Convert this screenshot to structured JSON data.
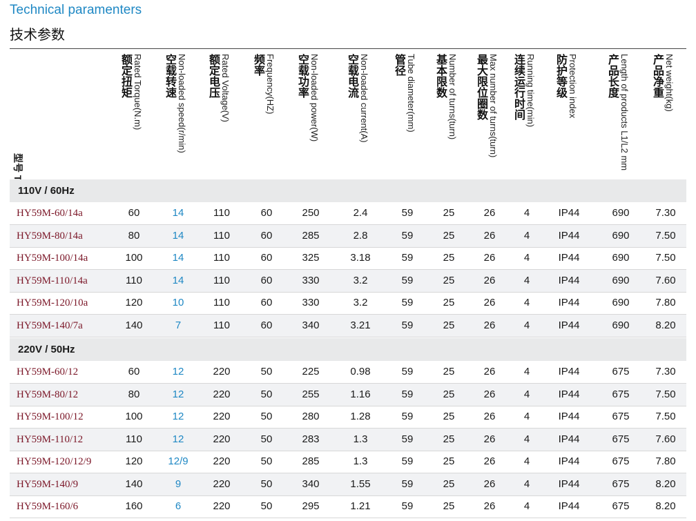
{
  "title_en": "Technical paramenters",
  "title_cn": "技术参数",
  "colors": {
    "accent_blue": "#1f88c4",
    "type_red": "#7a1526",
    "group_bg": "#e8e9ea"
  },
  "header": {
    "type_label": "型号 Type",
    "columns": [
      {
        "key": "torque",
        "en": "Rated Torque(N.m)",
        "cn": "额定扭矩"
      },
      {
        "key": "speed",
        "en": "Non-loaded speed(r/min)",
        "cn": "空载转速"
      },
      {
        "key": "voltage",
        "en": "Rated Voltage(V)",
        "cn": "额定电压"
      },
      {
        "key": "freq",
        "en": "Frequency(HZ)",
        "cn": "频率"
      },
      {
        "key": "power",
        "en": "Non-loaded power(W)",
        "cn": "空载功率"
      },
      {
        "key": "current",
        "en": "Non-loaded current(A)",
        "cn": "空载电流"
      },
      {
        "key": "tube",
        "en": "Tube diameter(mm)",
        "cn": "管径"
      },
      {
        "key": "turns",
        "en": "Number of turns(turn)",
        "cn": "基本限数"
      },
      {
        "key": "maxturns",
        "en": "Max number of turns(turn)",
        "cn": "最大限位圈数"
      },
      {
        "key": "runtime",
        "en": "Running time(min)",
        "cn": "连续运行时间"
      },
      {
        "key": "ip",
        "en": "Protection index",
        "cn": "防护等级"
      },
      {
        "key": "length",
        "en": "Length of products L1/L2 mm",
        "cn": "产品长度"
      },
      {
        "key": "weight",
        "en": "Net weight(kg)",
        "cn": "产品净重"
      }
    ]
  },
  "groups": [
    {
      "label": "110V / 60Hz",
      "rows": [
        [
          "HY59M-60/14a",
          "60",
          "14",
          "110",
          "60",
          "250",
          "2.4",
          "59",
          "25",
          "26",
          "4",
          "IP44",
          "690",
          "7.30"
        ],
        [
          "HY59M-80/14a",
          "80",
          "14",
          "110",
          "60",
          "285",
          "2.8",
          "59",
          "25",
          "26",
          "4",
          "IP44",
          "690",
          "7.50"
        ],
        [
          "HY59M-100/14a",
          "100",
          "14",
          "110",
          "60",
          "325",
          "3.18",
          "59",
          "25",
          "26",
          "4",
          "IP44",
          "690",
          "7.50"
        ],
        [
          "HY59M-110/14a",
          "110",
          "14",
          "110",
          "60",
          "330",
          "3.2",
          "59",
          "25",
          "26",
          "4",
          "IP44",
          "690",
          "7.60"
        ],
        [
          "HY59M-120/10a",
          "120",
          "10",
          "110",
          "60",
          "330",
          "3.2",
          "59",
          "25",
          "26",
          "4",
          "IP44",
          "690",
          "7.80"
        ],
        [
          "HY59M-140/7a",
          "140",
          "7",
          "110",
          "60",
          "340",
          "3.21",
          "59",
          "25",
          "26",
          "4",
          "IP44",
          "690",
          "8.20"
        ]
      ]
    },
    {
      "label": "220V / 50Hz",
      "rows": [
        [
          "HY59M-60/12",
          "60",
          "12",
          "220",
          "50",
          "225",
          "0.98",
          "59",
          "25",
          "26",
          "4",
          "IP44",
          "675",
          "7.30"
        ],
        [
          "HY59M-80/12",
          "80",
          "12",
          "220",
          "50",
          "255",
          "1.16",
          "59",
          "25",
          "26",
          "4",
          "IP44",
          "675",
          "7.50"
        ],
        [
          "HY59M-100/12",
          "100",
          "12",
          "220",
          "50",
          "280",
          "1.28",
          "59",
          "25",
          "26",
          "4",
          "IP44",
          "675",
          "7.50"
        ],
        [
          "HY59M-110/12",
          "110",
          "12",
          "220",
          "50",
          "283",
          "1.3",
          "59",
          "25",
          "26",
          "4",
          "IP44",
          "675",
          "7.60"
        ],
        [
          "HY59M-120/12/9",
          "120",
          "12/9",
          "220",
          "50",
          "285",
          "1.3",
          "59",
          "25",
          "26",
          "4",
          "IP44",
          "675",
          "7.80"
        ],
        [
          "HY59M-140/9",
          "140",
          "9",
          "220",
          "50",
          "340",
          "1.55",
          "59",
          "25",
          "26",
          "4",
          "IP44",
          "675",
          "8.20"
        ],
        [
          "HY59M-160/6",
          "160",
          "6",
          "220",
          "50",
          "295",
          "1.21",
          "59",
          "25",
          "26",
          "4",
          "IP44",
          "675",
          "8.20"
        ]
      ]
    }
  ]
}
